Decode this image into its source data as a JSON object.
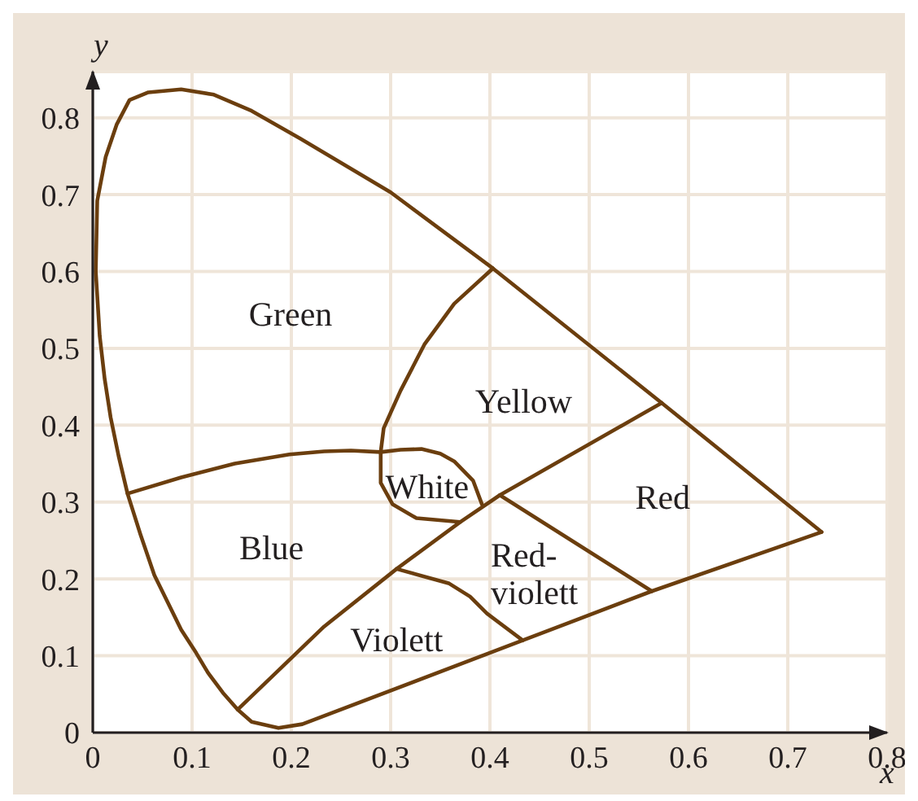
{
  "chart_data": {
    "type": "line",
    "xlabel": "x",
    "ylabel": "y",
    "xlim": [
      0,
      0.8
    ],
    "ylim": [
      0,
      0.86
    ],
    "xticks": [
      0,
      0.1,
      0.2,
      0.3,
      0.4,
      0.5,
      0.6,
      0.7,
      0.8
    ],
    "yticks": [
      0,
      0.1,
      0.2,
      0.3,
      0.4,
      0.5,
      0.6,
      0.7,
      0.8
    ],
    "grid": true,
    "marker": "none",
    "line_style": "solid",
    "series": [
      {
        "color": "#6b3e0e",
        "x": [
          0.734,
          0.563,
          0.433,
          0.211,
          0.187,
          0.16,
          0.146,
          0.131,
          0.116,
          0.104,
          0.089,
          0.062,
          0.048,
          0.035,
          0.026,
          0.018,
          0.012,
          0.007,
          0.003,
          0.0045,
          0.013,
          0.024,
          0.037,
          0.056,
          0.089,
          0.122,
          0.16,
          0.209,
          0.3,
          0.403,
          0.573
        ],
        "values": [
          0.261,
          0.184,
          0.12,
          0.011,
          0.006,
          0.014,
          0.03,
          0.052,
          0.078,
          0.104,
          0.134,
          0.205,
          0.258,
          0.311,
          0.36,
          0.41,
          0.46,
          0.516,
          0.6,
          0.692,
          0.749,
          0.791,
          0.823,
          0.833,
          0.837,
          0.83,
          0.809,
          0.773,
          0.703,
          0.604,
          0.429
        ]
      },
      {
        "color": "#6b3e0e",
        "x": [
          0.035,
          0.089,
          0.143,
          0.198,
          0.233,
          0.26,
          0.29,
          0.31,
          0.331,
          0.35,
          0.364,
          0.383,
          0.392
        ],
        "values": [
          0.311,
          0.332,
          0.35,
          0.362,
          0.366,
          0.367,
          0.365,
          0.368,
          0.369,
          0.363,
          0.353,
          0.328,
          0.297
        ]
      },
      {
        "color": "#6b3e0e",
        "x": [
          0.403,
          0.364,
          0.334,
          0.31,
          0.293,
          0.29,
          0.29,
          0.302,
          0.326,
          0.37
        ],
        "values": [
          0.604,
          0.558,
          0.505,
          0.445,
          0.396,
          0.365,
          0.325,
          0.297,
          0.279,
          0.274
        ]
      },
      {
        "color": "#6b3e0e",
        "x": [
          0.146,
          0.233,
          0.306,
          0.37,
          0.41,
          0.573,
          0.734
        ],
        "values": [
          0.03,
          0.138,
          0.213,
          0.274,
          0.309,
          0.429,
          0.261
        ]
      },
      {
        "color": "#6b3e0e",
        "x": [
          0.41,
          0.563
        ],
        "values": [
          0.309,
          0.184
        ]
      },
      {
        "color": "#6b3e0e",
        "x": [
          0.306,
          0.359,
          0.38,
          0.397,
          0.433
        ],
        "values": [
          0.213,
          0.194,
          0.177,
          0.155,
          0.12
        ]
      }
    ],
    "annotations": [
      "Green",
      "Yellow",
      "White",
      "Blue",
      "Red",
      "Red-violett",
      "Violett"
    ]
  }
}
